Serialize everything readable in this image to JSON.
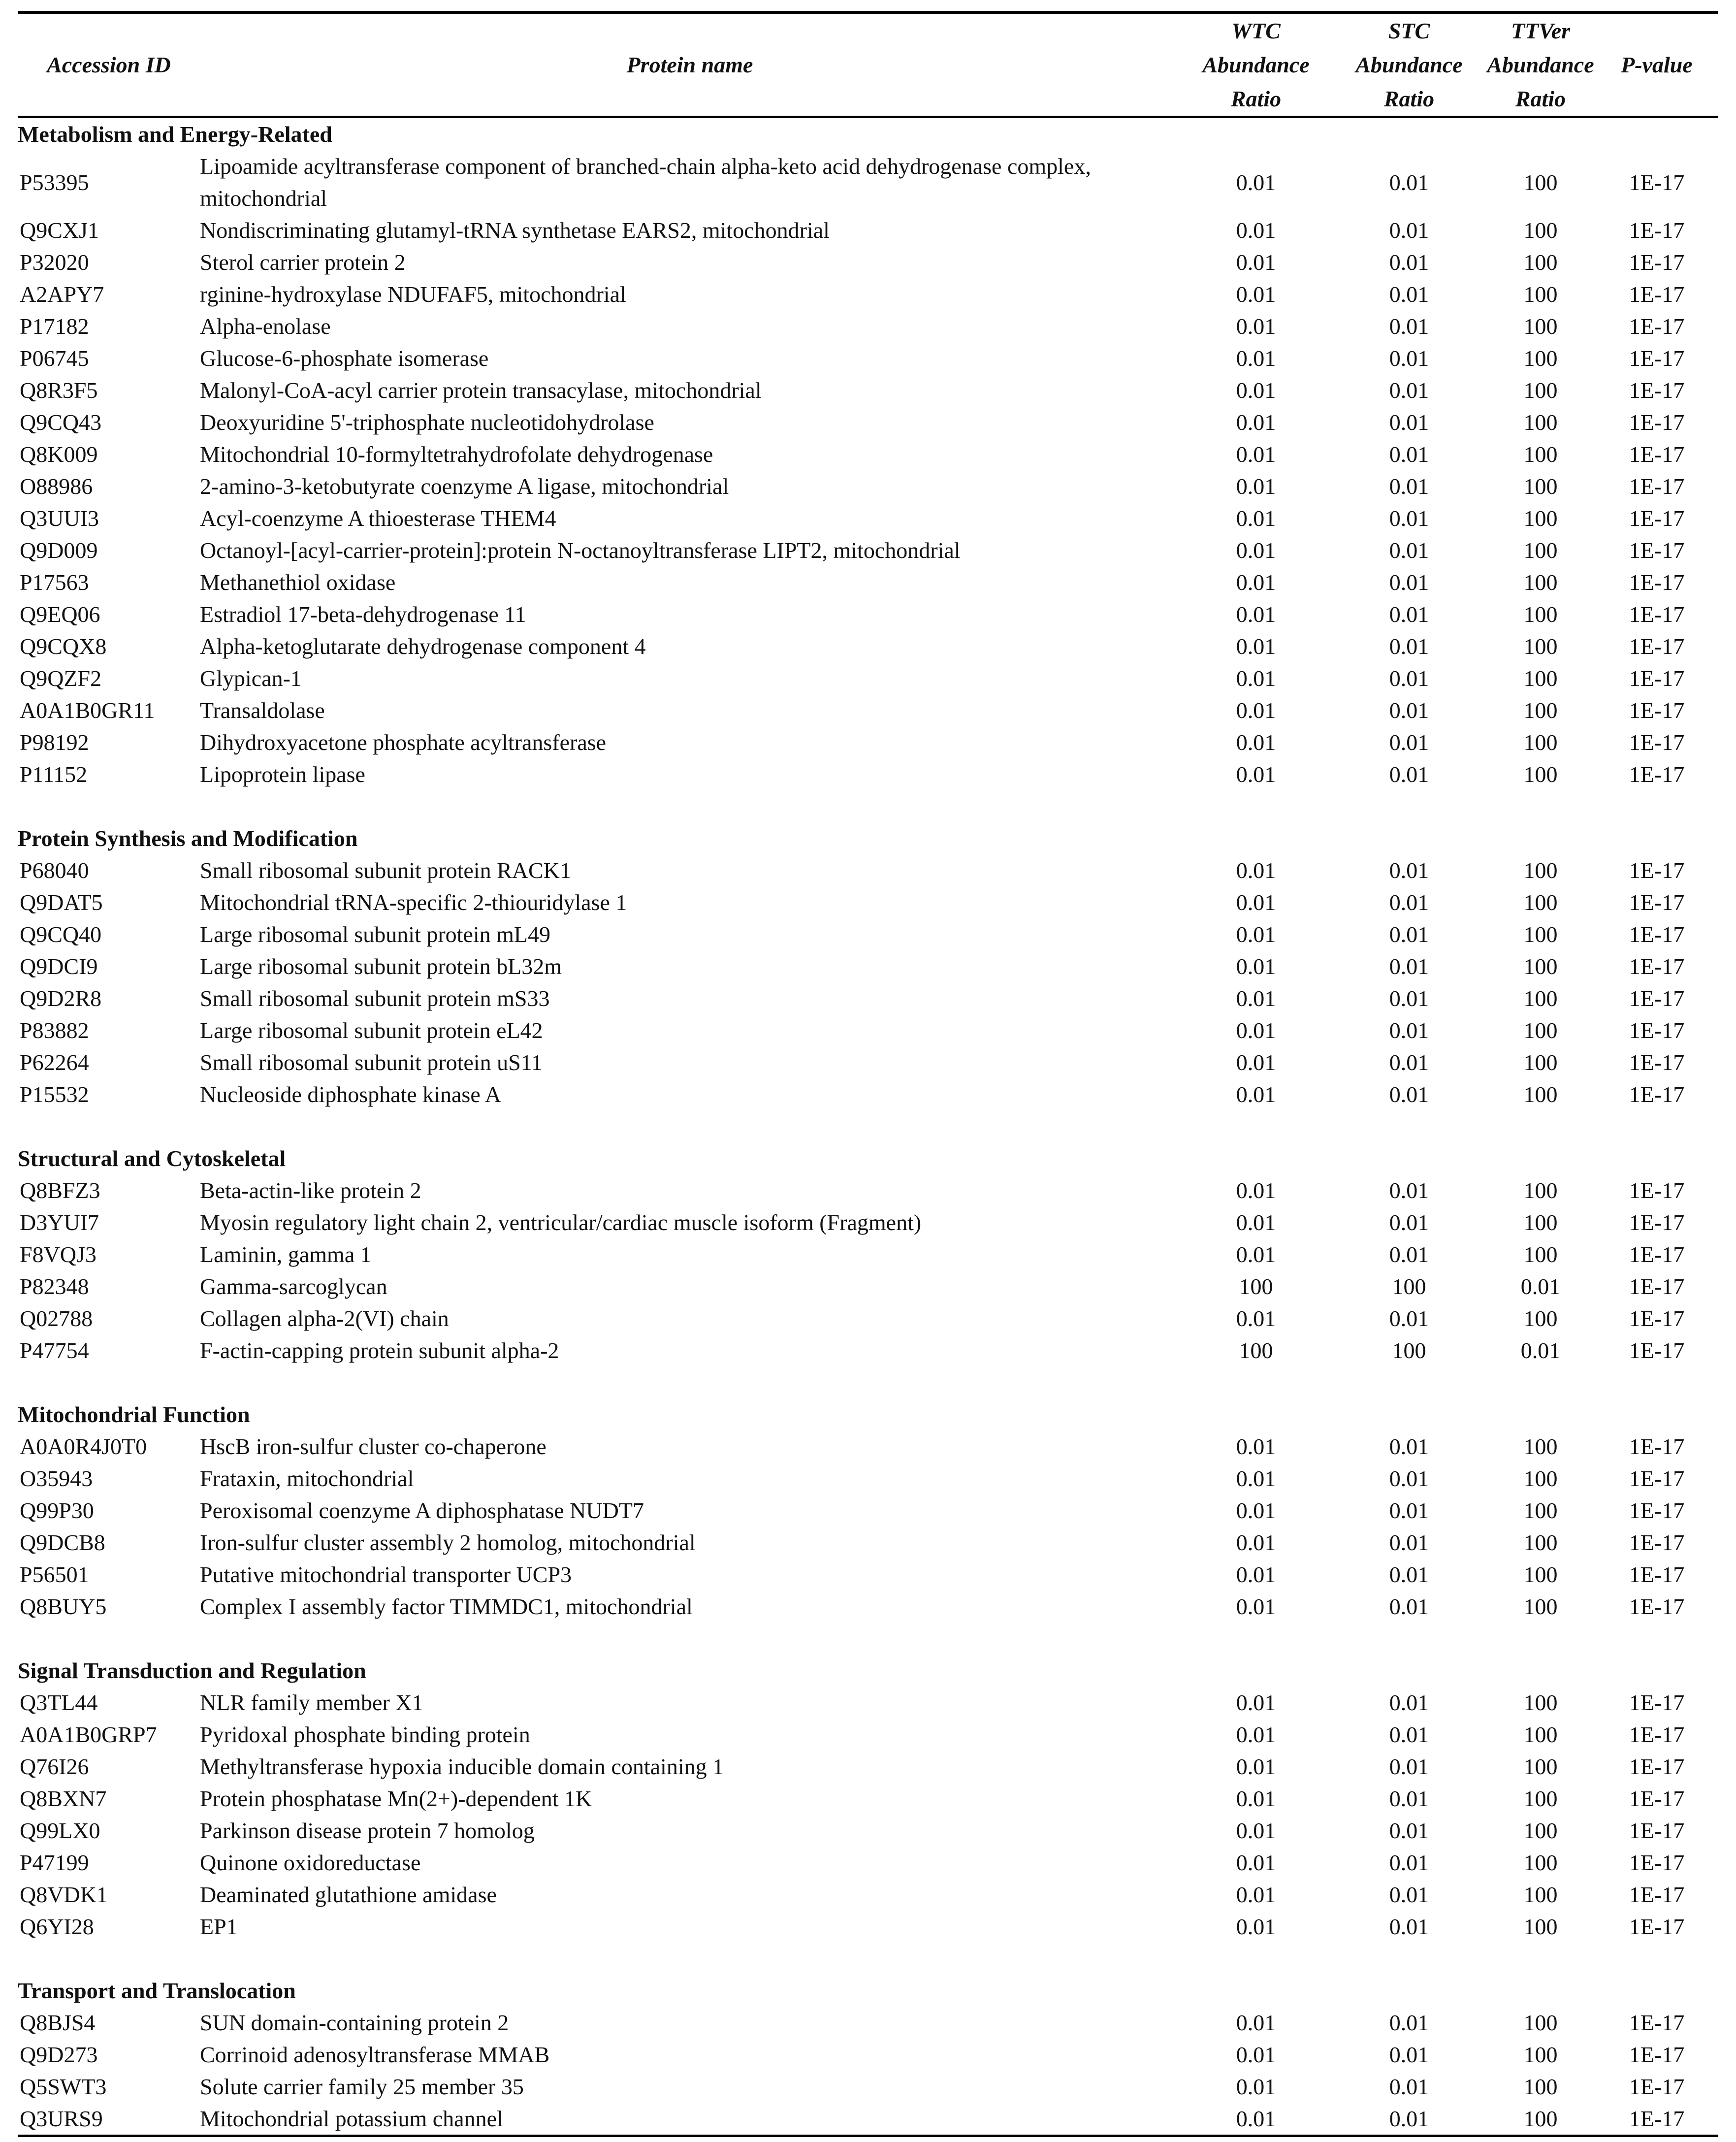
{
  "table": {
    "headers": {
      "accession": "Accession ID",
      "protein": "Protein name",
      "wtc": [
        "WTC",
        "Abundance",
        "Ratio"
      ],
      "stc": [
        "STC",
        "Abundance",
        "Ratio"
      ],
      "ttver": [
        "TTVer",
        "Abundance",
        "Ratio"
      ],
      "pvalue": "P-value"
    },
    "sections": [
      {
        "title": "Metabolism and Energy-Related",
        "rows": [
          [
            "P53395",
            "Lipoamide acyltransferase component of branched-chain alpha-keto acid dehydrogenase complex, mitochondrial",
            "0.01",
            "0.01",
            "100",
            "1E-17"
          ],
          [
            "Q9CXJ1",
            "Nondiscriminating glutamyl-tRNA synthetase EARS2, mitochondrial",
            "0.01",
            "0.01",
            "100",
            "1E-17"
          ],
          [
            "P32020",
            "Sterol carrier protein 2",
            "0.01",
            "0.01",
            "100",
            "1E-17"
          ],
          [
            "A2APY7",
            "rginine-hydroxylase NDUFAF5, mitochondrial",
            "0.01",
            "0.01",
            "100",
            "1E-17"
          ],
          [
            "P17182",
            "Alpha-enolase",
            "0.01",
            "0.01",
            "100",
            "1E-17"
          ],
          [
            "P06745",
            "Glucose-6-phosphate isomerase",
            "0.01",
            "0.01",
            "100",
            "1E-17"
          ],
          [
            "Q8R3F5",
            "Malonyl-CoA-acyl carrier protein transacylase, mitochondrial",
            "0.01",
            "0.01",
            "100",
            "1E-17"
          ],
          [
            "Q9CQ43",
            "Deoxyuridine 5'-triphosphate nucleotidohydrolase",
            "0.01",
            "0.01",
            "100",
            "1E-17"
          ],
          [
            "Q8K009",
            "Mitochondrial 10-formyltetrahydrofolate dehydrogenase",
            "0.01",
            "0.01",
            "100",
            "1E-17"
          ],
          [
            "O88986",
            "2-amino-3-ketobutyrate coenzyme A ligase, mitochondrial",
            "0.01",
            "0.01",
            "100",
            "1E-17"
          ],
          [
            "Q3UUI3",
            "Acyl-coenzyme A thioesterase THEM4",
            "0.01",
            "0.01",
            "100",
            "1E-17"
          ],
          [
            "Q9D009",
            "Octanoyl-[acyl-carrier-protein]:protein N-octanoyltransferase LIPT2, mitochondrial",
            "0.01",
            "0.01",
            "100",
            "1E-17"
          ],
          [
            "P17563",
            "Methanethiol oxidase",
            "0.01",
            "0.01",
            "100",
            "1E-17"
          ],
          [
            "Q9EQ06",
            "Estradiol 17-beta-dehydrogenase 11",
            "0.01",
            "0.01",
            "100",
            "1E-17"
          ],
          [
            "Q9CQX8",
            "Alpha-ketoglutarate dehydrogenase component 4",
            "0.01",
            "0.01",
            "100",
            "1E-17"
          ],
          [
            "Q9QZF2",
            "Glypican-1",
            "0.01",
            "0.01",
            "100",
            "1E-17"
          ],
          [
            "A0A1B0GR11",
            "Transaldolase",
            "0.01",
            "0.01",
            "100",
            "1E-17"
          ],
          [
            "P98192",
            "Dihydroxyacetone phosphate acyltransferase",
            "0.01",
            "0.01",
            "100",
            "1E-17"
          ],
          [
            "P11152",
            "Lipoprotein lipase",
            "0.01",
            "0.01",
            "100",
            "1E-17"
          ]
        ]
      },
      {
        "title": "Protein Synthesis and Modification",
        "rows": [
          [
            "P68040",
            "Small ribosomal subunit protein RACK1",
            "0.01",
            "0.01",
            "100",
            "1E-17"
          ],
          [
            "Q9DAT5",
            "Mitochondrial tRNA-specific 2-thiouridylase 1",
            "0.01",
            "0.01",
            "100",
            "1E-17"
          ],
          [
            "Q9CQ40",
            "Large ribosomal subunit protein mL49",
            "0.01",
            "0.01",
            "100",
            "1E-17"
          ],
          [
            "Q9DCI9",
            "Large ribosomal subunit protein bL32m",
            "0.01",
            "0.01",
            "100",
            "1E-17"
          ],
          [
            "Q9D2R8",
            "Small ribosomal subunit protein mS33",
            "0.01",
            "0.01",
            "100",
            "1E-17"
          ],
          [
            "P83882",
            "Large ribosomal subunit protein eL42",
            "0.01",
            "0.01",
            "100",
            "1E-17"
          ],
          [
            "P62264",
            "Small ribosomal subunit protein uS11",
            "0.01",
            "0.01",
            "100",
            "1E-17"
          ],
          [
            "P15532",
            "Nucleoside diphosphate kinase A",
            "0.01",
            "0.01",
            "100",
            "1E-17"
          ]
        ]
      },
      {
        "title": "Structural and Cytoskeletal",
        "rows": [
          [
            "Q8BFZ3",
            "Beta-actin-like protein 2",
            "0.01",
            "0.01",
            "100",
            "1E-17"
          ],
          [
            "D3YUI7",
            "Myosin regulatory light chain 2, ventricular/cardiac muscle isoform (Fragment)",
            "0.01",
            "0.01",
            "100",
            "1E-17"
          ],
          [
            "F8VQJ3",
            "Laminin, gamma 1",
            "0.01",
            "0.01",
            "100",
            "1E-17"
          ],
          [
            "P82348",
            "Gamma-sarcoglycan",
            "100",
            "100",
            "0.01",
            "1E-17"
          ],
          [
            "Q02788",
            "Collagen alpha-2(VI) chain",
            "0.01",
            "0.01",
            "100",
            "1E-17"
          ],
          [
            "P47754",
            "F-actin-capping protein subunit alpha-2",
            "100",
            "100",
            "0.01",
            "1E-17"
          ]
        ]
      },
      {
        "title": "Mitochondrial Function",
        "rows": [
          [
            "A0A0R4J0T0",
            "HscB iron-sulfur cluster co-chaperone",
            "0.01",
            "0.01",
            "100",
            "1E-17"
          ],
          [
            "O35943",
            "Frataxin, mitochondrial",
            "0.01",
            "0.01",
            "100",
            "1E-17"
          ],
          [
            "Q99P30",
            "Peroxisomal coenzyme A diphosphatase NUDT7",
            "0.01",
            "0.01",
            "100",
            "1E-17"
          ],
          [
            "Q9DCB8",
            "Iron-sulfur cluster assembly 2 homolog, mitochondrial",
            "0.01",
            "0.01",
            "100",
            "1E-17"
          ],
          [
            "P56501",
            "Putative mitochondrial transporter UCP3",
            "0.01",
            "0.01",
            "100",
            "1E-17"
          ],
          [
            "Q8BUY5",
            "Complex I assembly factor TIMMDC1, mitochondrial",
            "0.01",
            "0.01",
            "100",
            "1E-17"
          ]
        ]
      },
      {
        "title": "Signal Transduction and Regulation",
        "rows": [
          [
            "Q3TL44",
            "NLR family member X1",
            "0.01",
            "0.01",
            "100",
            "1E-17"
          ],
          [
            "A0A1B0GRP7",
            "Pyridoxal phosphate binding protein",
            "0.01",
            "0.01",
            "100",
            "1E-17"
          ],
          [
            "Q76I26",
            "Methyltransferase hypoxia inducible domain containing 1",
            "0.01",
            "0.01",
            "100",
            "1E-17"
          ],
          [
            "Q8BXN7",
            "Protein phosphatase Mn(2+)-dependent 1K",
            "0.01",
            "0.01",
            "100",
            "1E-17"
          ],
          [
            "Q99LX0",
            "Parkinson disease protein 7 homolog",
            "0.01",
            "0.01",
            "100",
            "1E-17"
          ],
          [
            "P47199",
            "Quinone oxidoreductase",
            "0.01",
            "0.01",
            "100",
            "1E-17"
          ],
          [
            "Q8VDK1",
            "Deaminated glutathione amidase",
            "0.01",
            "0.01",
            "100",
            "1E-17"
          ],
          [
            "Q6YI28",
            "EP1",
            "0.01",
            "0.01",
            "100",
            "1E-17"
          ]
        ]
      },
      {
        "title": "Transport and Translocation",
        "rows": [
          [
            "Q8BJS4",
            "SUN domain-containing protein 2",
            "0.01",
            "0.01",
            "100",
            "1E-17"
          ],
          [
            "Q9D273",
            "Corrinoid adenosyltransferase MMAB",
            "0.01",
            "0.01",
            "100",
            "1E-17"
          ],
          [
            "Q5SWT3",
            "Solute carrier family 25 member 35",
            "0.01",
            "0.01",
            "100",
            "1E-17"
          ],
          [
            "Q3URS9",
            "Mitochondrial potassium channel",
            "0.01",
            "0.01",
            "100",
            "1E-17"
          ]
        ]
      }
    ]
  }
}
